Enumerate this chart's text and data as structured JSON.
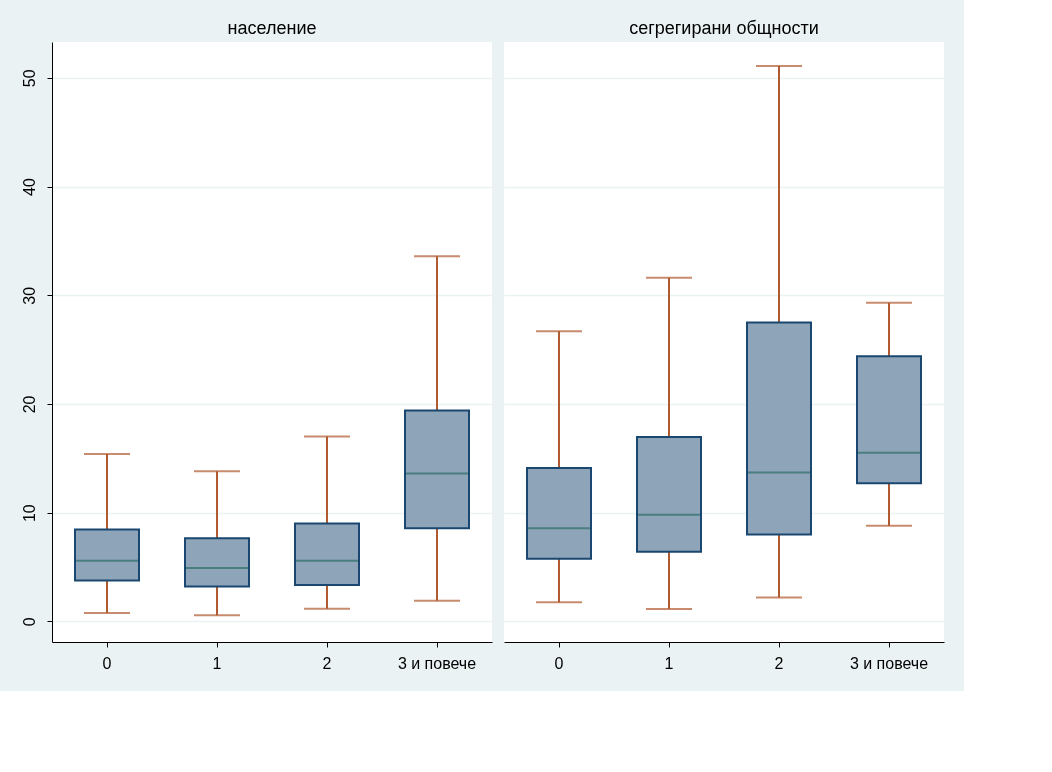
{
  "chart_data": [
    {
      "type": "box",
      "title": "население",
      "categories": [
        "0",
        "1",
        "2",
        "3 и повече"
      ],
      "ylim": [
        -1.9,
        53.3
      ],
      "yticks": [
        0,
        10,
        20,
        30,
        40,
        50
      ],
      "grid": "y",
      "series": [
        {
          "color": "#8ea5b9",
          "boxes": [
            {
              "low": 0.76,
              "q1": 3.75,
              "median": 5.57,
              "q3": 8.45,
              "high": 15.4
            },
            {
              "low": 0.56,
              "q1": 3.2,
              "median": 4.9,
              "q3": 7.65,
              "high": 13.8
            },
            {
              "low": 1.17,
              "q1": 3.34,
              "median": 5.57,
              "q3": 9.0,
              "high": 17.0
            },
            {
              "low": 1.9,
              "q1": 8.56,
              "median": 13.6,
              "q3": 19.4,
              "high": 33.6
            }
          ]
        }
      ]
    },
    {
      "type": "box",
      "title": "сегрегирани общности",
      "categories": [
        "0",
        "1",
        "2",
        "3 и повече"
      ],
      "ylim": [
        -1.9,
        53.3
      ],
      "yticks": [
        0,
        10,
        20,
        30,
        40,
        50
      ],
      "grid": "y",
      "tick_labels": "x",
      "series": [
        {
          "color": "#8ea5b9",
          "boxes": [
            {
              "low": 1.75,
              "q1": 5.75,
              "median": 8.56,
              "q3": 14.1,
              "high": 26.7
            },
            {
              "low": 1.13,
              "q1": 6.4,
              "median": 9.8,
              "q3": 16.95,
              "high": 31.6
            },
            {
              "low": 2.2,
              "q1": 8.0,
              "median": 13.7,
              "q3": 27.5,
              "high": 51.1
            },
            {
              "low": 8.8,
              "q1": 12.7,
              "median": 15.5,
              "q3": 24.4,
              "high": 29.3
            }
          ]
        }
      ]
    }
  ]
}
